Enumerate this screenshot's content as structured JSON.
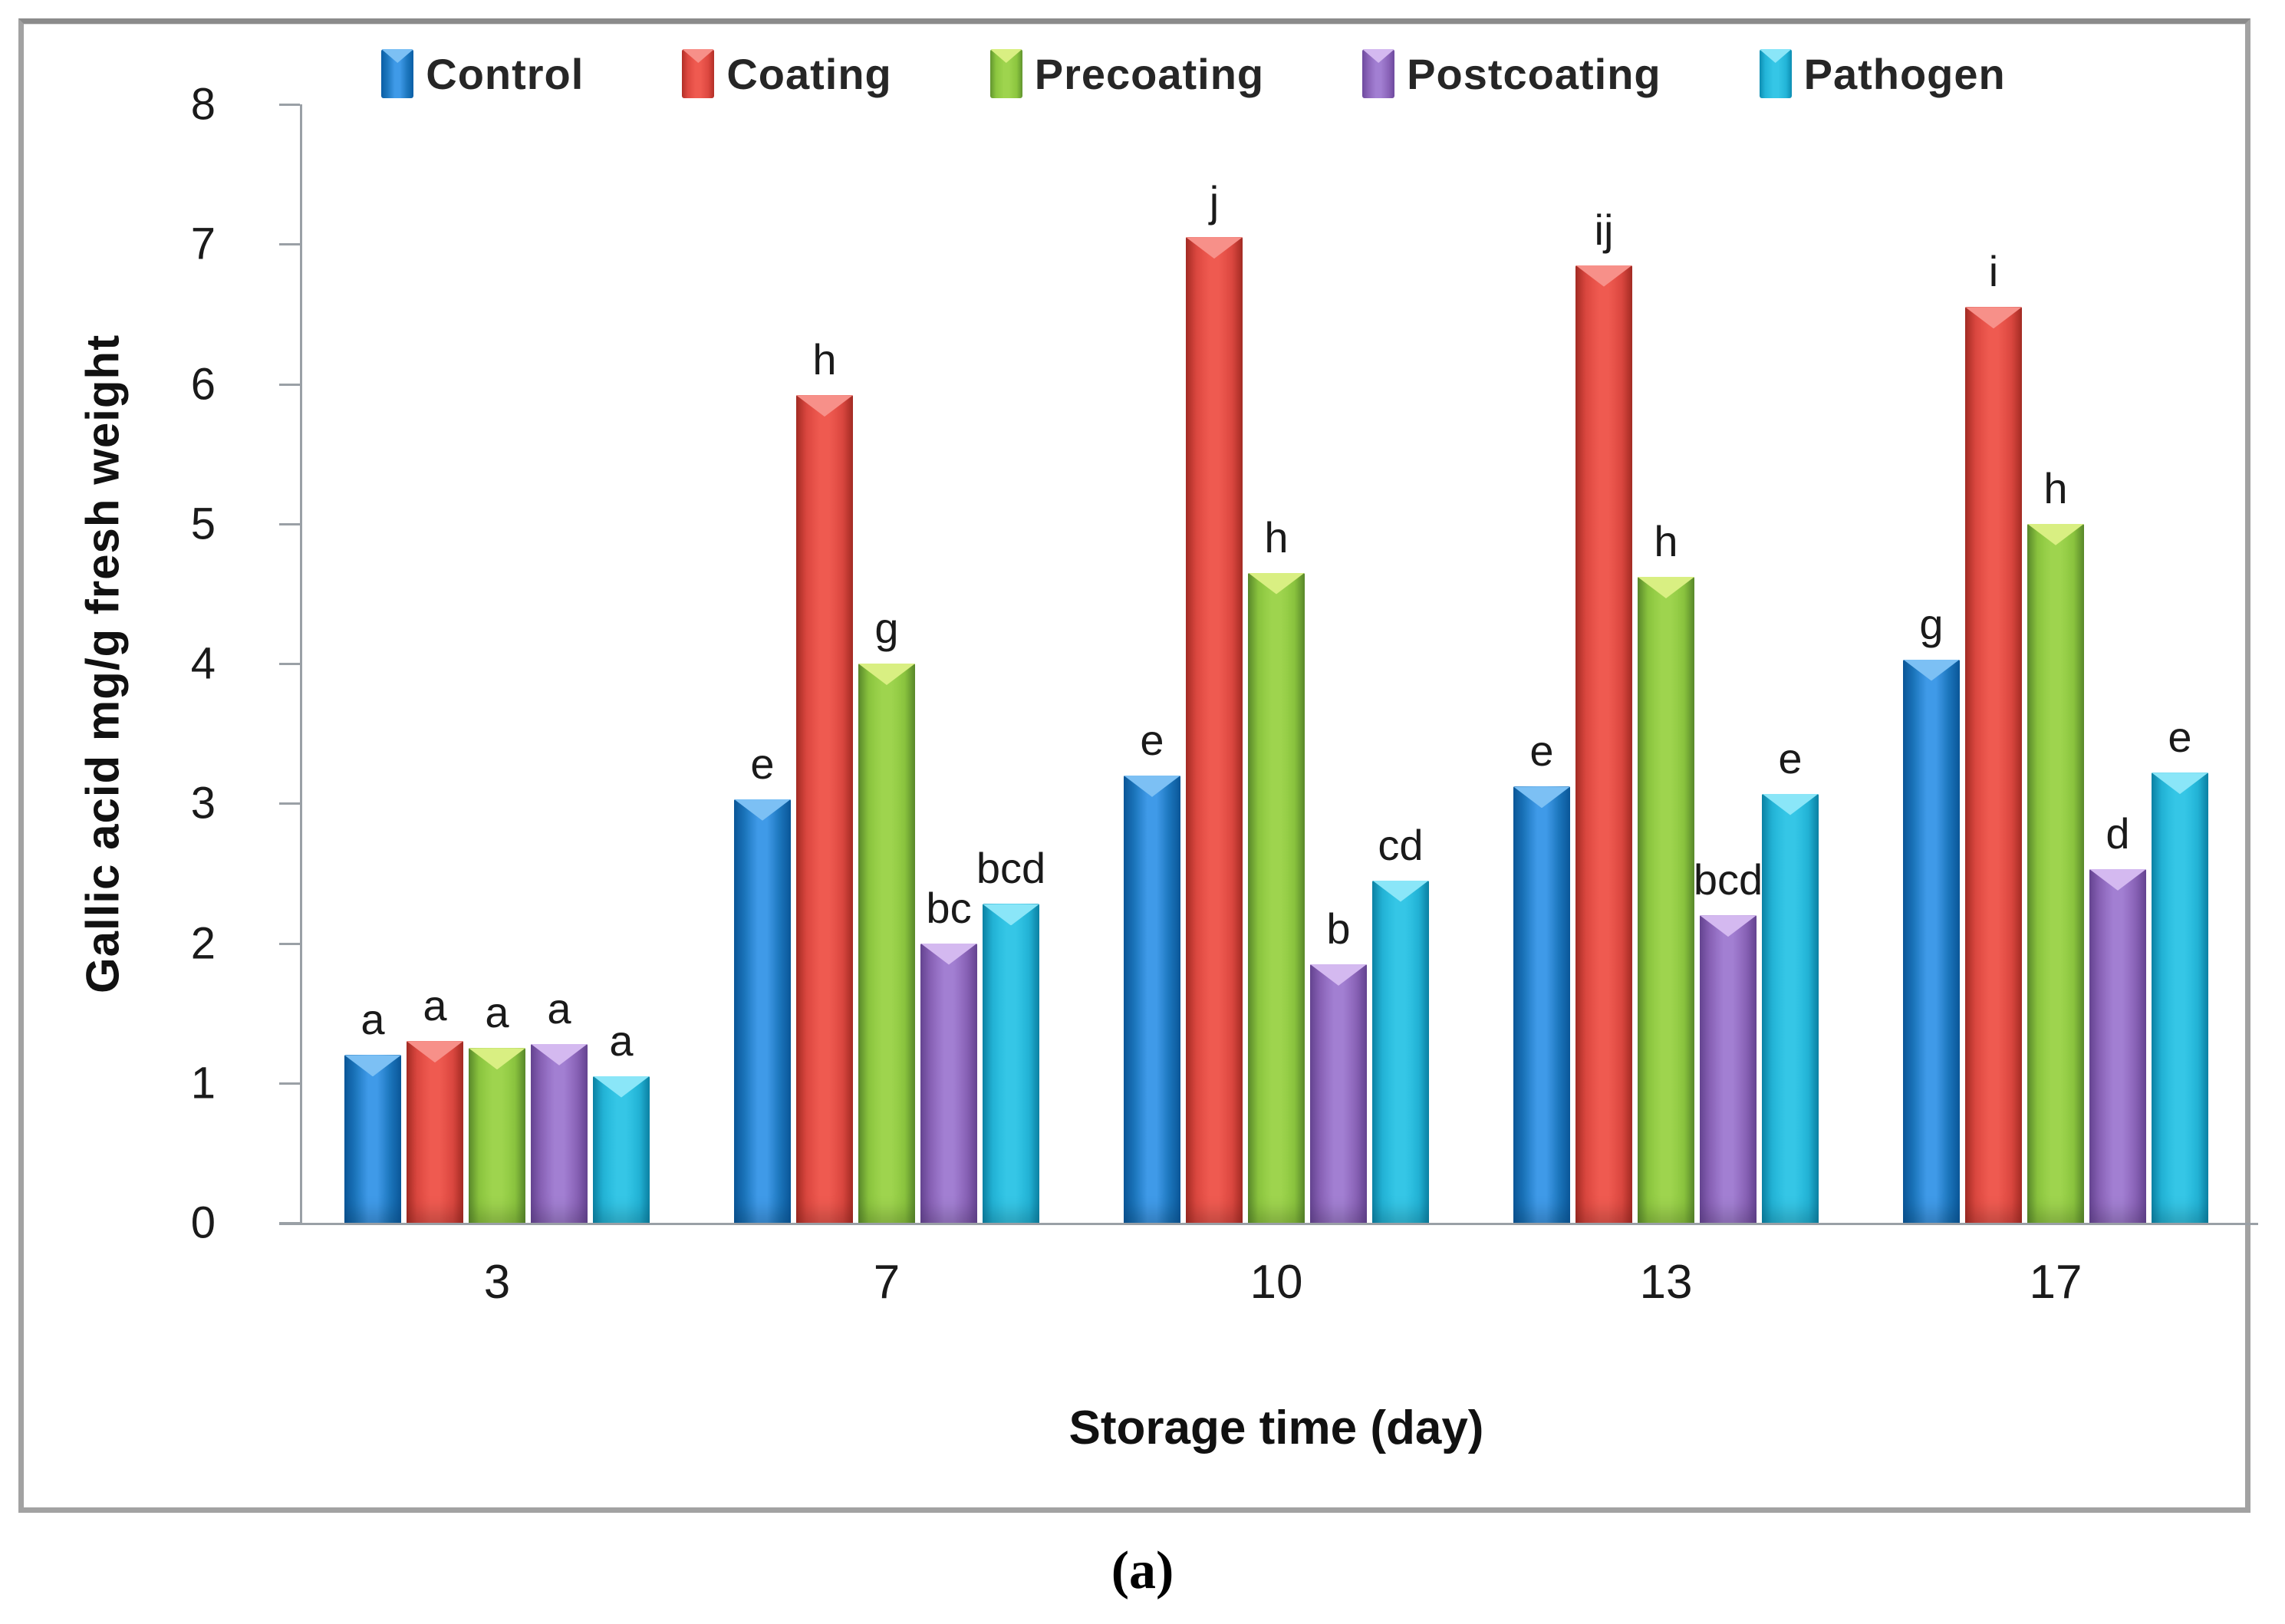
{
  "figure": {
    "caption": "(a)"
  },
  "chart_data": {
    "type": "bar",
    "title": "",
    "xlabel": "Storage time (day)",
    "ylabel": "Gallic acid mg/g fresh weight",
    "categories": [
      "3",
      "7",
      "10",
      "13",
      "17"
    ],
    "ylim": [
      0,
      8
    ],
    "yticks": [
      0,
      1,
      2,
      3,
      4,
      5,
      6,
      7,
      8
    ],
    "grid": false,
    "legend_position": "top",
    "series": [
      {
        "name": "Control",
        "color": "#1b75bc",
        "color_dark": "#0b5ea6",
        "color_light": "#3f9ae8",
        "color_cap": "#7cc0f4",
        "values": [
          1.2,
          3.03,
          3.2,
          3.12,
          4.03
        ],
        "sig_labels": [
          "a",
          "e",
          "e",
          "e",
          "g"
        ]
      },
      {
        "name": "Coating",
        "color": "#dd4840",
        "color_dark": "#b22f27",
        "color_light": "#ef5a50",
        "color_cap": "#f79089",
        "values": [
          1.3,
          5.92,
          7.05,
          6.85,
          6.55
        ],
        "sig_labels": [
          "a",
          "h",
          "j",
          "ij",
          "i"
        ]
      },
      {
        "name": "Precoating",
        "color": "#8cc63f",
        "color_dark": "#61952f",
        "color_light": "#9ed44e",
        "color_cap": "#d9ef82",
        "values": [
          1.25,
          4.0,
          4.65,
          4.62,
          5.0
        ],
        "sig_labels": [
          "a",
          "g",
          "h",
          "h",
          "h"
        ]
      },
      {
        "name": "Postcoating",
        "color": "#8a63b8",
        "color_dark": "#6e4a9e",
        "color_light": "#a27fd2",
        "color_cap": "#d4b9f0",
        "values": [
          1.28,
          2.0,
          1.85,
          2.2,
          2.53
        ],
        "sig_labels": [
          "a",
          "bc",
          "b",
          "bcd",
          "d"
        ]
      },
      {
        "name": "Pathogen",
        "color": "#23b5d8",
        "color_dark": "#0d8db2",
        "color_light": "#35c6e6",
        "color_cap": "#8ae6f8",
        "values": [
          1.05,
          2.28,
          2.45,
          3.07,
          3.22
        ],
        "sig_labels": [
          "a",
          "bcd",
          "cd",
          "e",
          "e"
        ]
      }
    ]
  }
}
